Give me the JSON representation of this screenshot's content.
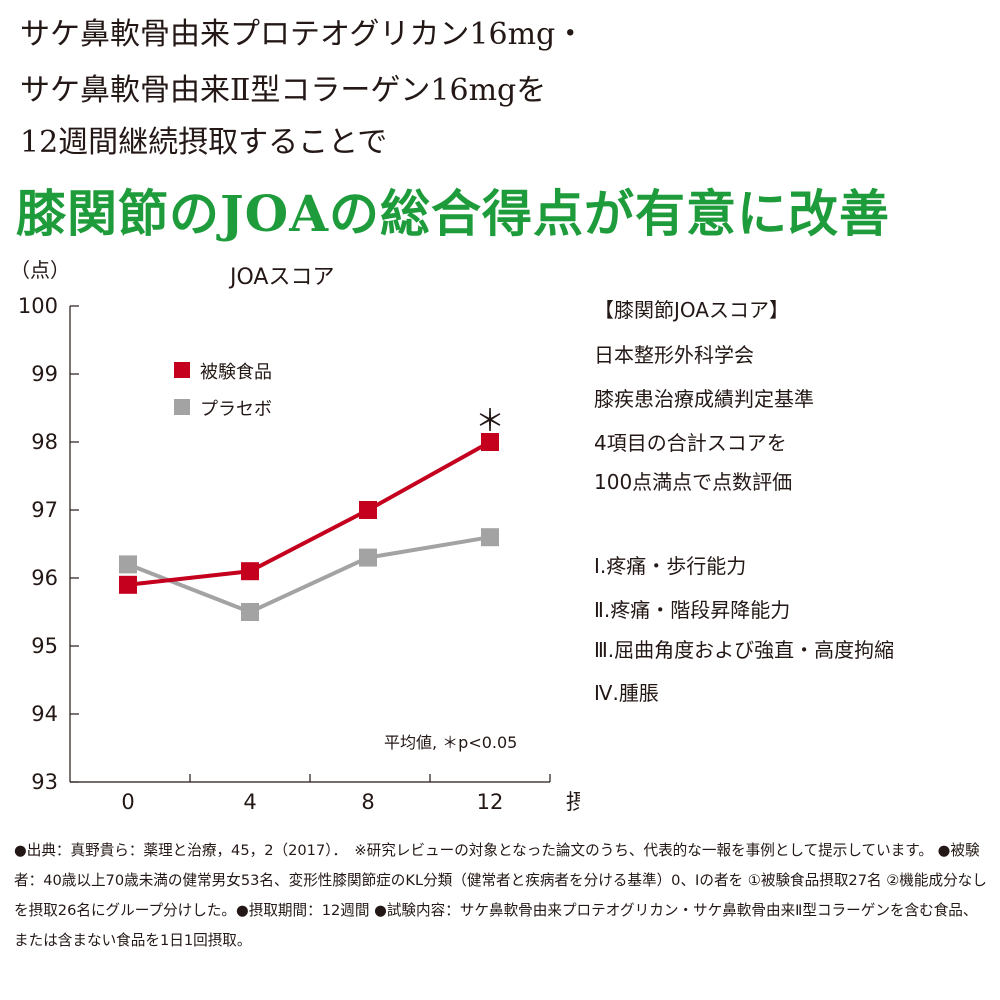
{
  "intro": {
    "line1": "サケ鼻軟骨由来プロテオグリカン16mg・",
    "line2": "サケ鼻軟骨由来Ⅱ型コラーゲン16mgを",
    "line3": "12週間継続摂取することで"
  },
  "headline": "膝関節のJOAの総合得点が有意に改善",
  "chart_data": {
    "type": "line",
    "title": "JOAスコア",
    "ylabel": "（点）",
    "xlabel": "摂取期間（週）",
    "x": [
      0,
      4,
      8,
      12
    ],
    "xticks": [
      "0",
      "4",
      "8",
      "12"
    ],
    "ylim": [
      93,
      100
    ],
    "yticks": [
      "93",
      "94",
      "95",
      "96",
      "97",
      "98",
      "99",
      "100"
    ],
    "series": [
      {
        "name": "被験食品",
        "color": "#c4001e",
        "values": [
          95.9,
          96.1,
          97.0,
          98.0
        ]
      },
      {
        "name": "プラセボ",
        "color": "#a3a3a3",
        "values": [
          96.2,
          95.5,
          96.3,
          96.6
        ]
      }
    ],
    "significance_marker": "＊",
    "note": "平均値, ＊p<0.05",
    "grid": false,
    "legend_position": "top-left"
  },
  "info_box": {
    "lines": [
      "【膝関節JOAスコア】",
      "日本整形外科学会",
      "膝疾患治療成績判定基準",
      "4項目の合計スコアを",
      "100点満点で点数評価"
    ],
    "items": [
      "Ⅰ.疼痛・歩行能力",
      "Ⅱ.疼痛・階段昇降能力",
      "Ⅲ.屈曲角度および強直・高度拘縮",
      "Ⅳ.腫脹"
    ]
  },
  "footnote": "●出典：真野貴ら：薬理と治療，45，2（2017）．　※研究レビューの対象となった論文のうち、代表的な一報を事例として提示しています。 ●被験者：40歳以上70歳未満の健常男女53名、変形性膝関節症のKL分類（健常者と疾病者を分ける基準）0、Ⅰの者を ①被験食品摂取27名 ②機能成分なしを摂取26名にグループ分けした。●摂取期間：12週間 ●試験内容：サケ鼻軟骨由来プロテオグリカン・サケ鼻軟骨由来Ⅱ型コラーゲンを含む食品、または含まない食品を1日1回摂取。"
}
